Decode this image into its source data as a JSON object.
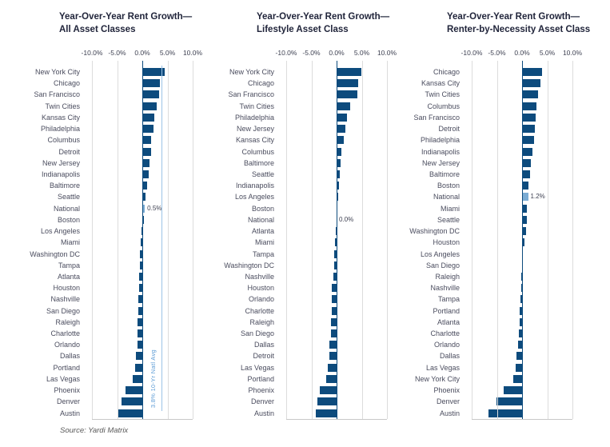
{
  "source_note": "Source: Yardi Matrix",
  "colors": {
    "bar": "#0d4b7d",
    "national_bar": "#7bacd4",
    "zero_line": "#0d4b7d",
    "ref_line": "#9dc3e6",
    "ref_label": "#5b9bd5",
    "grid": "#dcdcdc"
  },
  "chart_data": [
    {
      "type": "bar",
      "orientation": "horizontal",
      "title": [
        "Year-Over-Year Rent Growth—",
        "All Asset Classes"
      ],
      "xlim": [
        -10,
        10
      ],
      "tick_labels": [
        "-10.0%",
        "-5.0%",
        "0.0%",
        "5.0%",
        "10.0%"
      ],
      "grid": true,
      "categories": [
        "New York City",
        "Chicago",
        "San Francisco",
        "Twin Cities",
        "Kansas City",
        "Philadelphia",
        "Columbus",
        "Detroit",
        "New Jersey",
        "Indianapolis",
        "Baltimore",
        "Seattle",
        "National",
        "Boston",
        "Los Angeles",
        "Miami",
        "Washington DC",
        "Tampa",
        "Atlanta",
        "Houston",
        "Nashville",
        "San Diego",
        "Raleigh",
        "Charlotte",
        "Orlando",
        "Dallas",
        "Portland",
        "Las Vegas",
        "Phoenix",
        "Denver",
        "Austin"
      ],
      "values": [
        4.5,
        3.5,
        3.4,
        2.8,
        2.4,
        2.2,
        1.8,
        1.7,
        1.5,
        1.3,
        0.9,
        0.7,
        0.5,
        0.3,
        -0.2,
        -0.3,
        -0.4,
        -0.5,
        -0.6,
        -0.7,
        -0.8,
        -0.8,
        -0.9,
        -0.9,
        -1.0,
        -1.3,
        -1.5,
        -1.9,
        -3.4,
        -4.2,
        -4.8
      ],
      "highlight_category": "National",
      "highlight_value_label": "0.5%",
      "ref_line": {
        "value": 3.8,
        "label": "3.8% 10-Yr Natl Avg"
      }
    },
    {
      "type": "bar",
      "orientation": "horizontal",
      "title": [
        "Year-Over-Year Rent Growth—",
        "Lifestyle Asset Class"
      ],
      "xlim": [
        -10,
        10
      ],
      "tick_labels": [
        "-10.0%",
        "-5.0%",
        "0.0%",
        "5.0%",
        "10.0%"
      ],
      "grid": true,
      "categories": [
        "New York City",
        "Chicago",
        "San Francisco",
        "Twin Cities",
        "Philadelphia",
        "New Jersey",
        "Kansas City",
        "Columbus",
        "Baltimore",
        "Seattle",
        "Indianapolis",
        "Los Angeles",
        "Boston",
        "National",
        "Atlanta",
        "Miami",
        "Tampa",
        "Washington DC",
        "Nashville",
        "Houston",
        "Orlando",
        "Charlotte",
        "Raleigh",
        "San Diego",
        "Dallas",
        "Detroit",
        "Las Vegas",
        "Portland",
        "Phoenix",
        "Denver",
        "Austin"
      ],
      "values": [
        4.9,
        4.3,
        4.2,
        2.7,
        2.0,
        1.8,
        1.5,
        1.0,
        0.8,
        0.6,
        0.4,
        0.3,
        0.1,
        0.0,
        -0.2,
        -0.3,
        -0.4,
        -0.5,
        -0.6,
        -0.9,
        -1.0,
        -1.0,
        -1.1,
        -1.1,
        -1.4,
        -1.5,
        -1.8,
        -2.1,
        -3.4,
        -3.8,
        -4.2
      ],
      "highlight_category": "National",
      "highlight_value_label": "0.0%",
      "ref_line": null
    },
    {
      "type": "bar",
      "orientation": "horizontal",
      "title": [
        "Year-Over-Year Rent Growth—",
        "Renter-by-Necessity Asset Class"
      ],
      "xlim": [
        -10,
        10
      ],
      "tick_labels": [
        "-10.0%",
        "-5.0%",
        "0.0%",
        "5.0%",
        "10.0%"
      ],
      "grid": true,
      "categories": [
        "Chicago",
        "Kansas City",
        "Twin Cities",
        "Columbus",
        "San Francisco",
        "Detroit",
        "Philadelphia",
        "Indianapolis",
        "New Jersey",
        "Baltimore",
        "Boston",
        "National",
        "Miami",
        "Seattle",
        "Washington DC",
        "Houston",
        "Los Angeles",
        "San Diego",
        "Raleigh",
        "Nashville",
        "Tampa",
        "Portland",
        "Atlanta",
        "Charlotte",
        "Orlando",
        "Dallas",
        "Las Vegas",
        "New York City",
        "Phoenix",
        "Denver",
        "Austin"
      ],
      "values": [
        3.9,
        3.7,
        3.2,
        2.8,
        2.7,
        2.5,
        2.4,
        2.1,
        1.8,
        1.6,
        1.3,
        1.2,
        0.9,
        0.9,
        0.8,
        0.4,
        0.1,
        0.1,
        -0.1,
        -0.2,
        -0.3,
        -0.5,
        -0.5,
        -0.6,
        -0.8,
        -1.1,
        -1.3,
        -1.8,
        -3.6,
        -5.1,
        -6.6
      ],
      "highlight_category": "National",
      "highlight_value_label": "1.2%",
      "ref_line": null
    }
  ]
}
